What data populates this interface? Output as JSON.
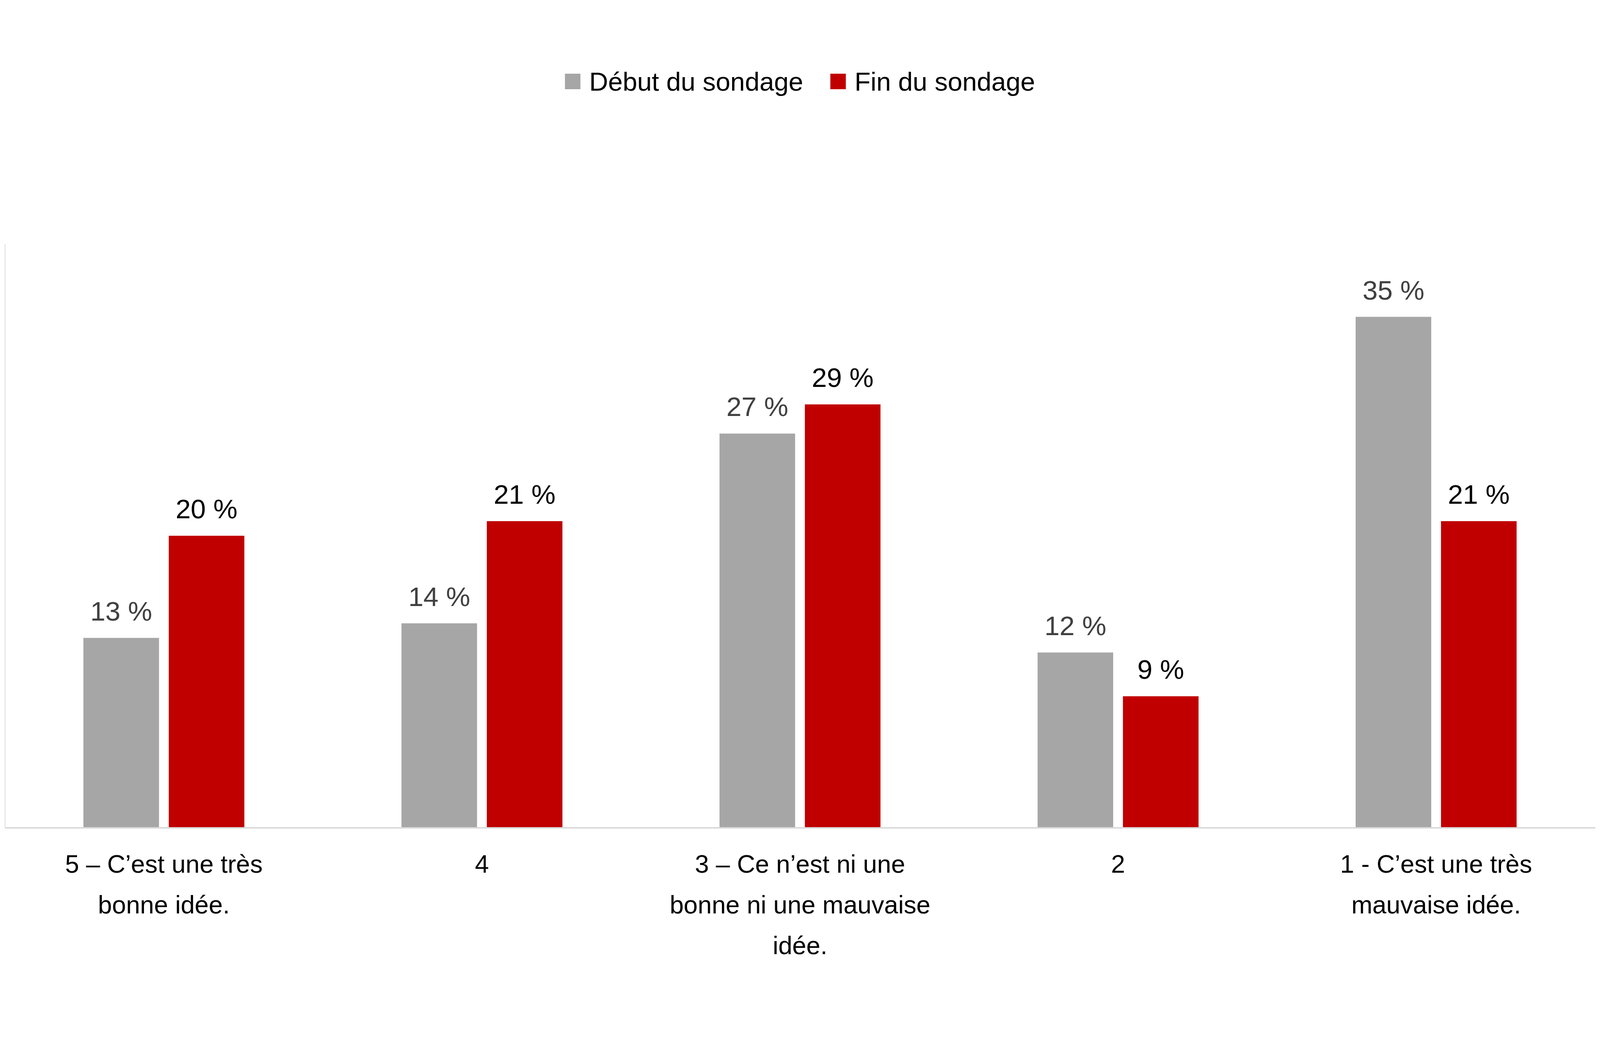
{
  "chart_data": {
    "type": "bar",
    "categories": [
      "5 – C’est une très bonne idée.",
      "4",
      "3 – Ce n’est ni une bonne ni une mauvaise idée.",
      "2",
      "1 - C’est une très mauvaise idée."
    ],
    "series": [
      {
        "name": "Début du sondage",
        "color": "#a6a6a6",
        "values": [
          13,
          14,
          27,
          12,
          35
        ],
        "value_labels": [
          "13 %",
          "14 %",
          "27 %",
          "12 %",
          "35 %"
        ]
      },
      {
        "name": "Fin du sondage",
        "color": "#c00000",
        "values": [
          20,
          21,
          29,
          9,
          21
        ],
        "value_labels": [
          "20 %",
          "21 %",
          "29 %",
          "9 %",
          "21 %"
        ]
      }
    ],
    "ylim": [
      0,
      40
    ],
    "yticks": [],
    "grid": false,
    "legend": "top",
    "data_labels": true,
    "tick_labels": "x"
  }
}
